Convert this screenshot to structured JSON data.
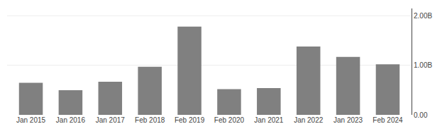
{
  "chart_data": {
    "type": "bar",
    "categories": [
      "Jan 2015",
      "Jan 2016",
      "Jan 2017",
      "Feb 2018",
      "Feb 2019",
      "Feb 2020",
      "Jan 2021",
      "Jan 2022",
      "Jan 2023",
      "Feb 2024"
    ],
    "values": [
      0.648,
      0.499,
      0.67,
      0.972,
      1.782,
      0.519,
      0.541,
      1.382,
      1.172,
      1.02
    ],
    "color": "#808080",
    "ylim": [
      0,
      2.15
    ],
    "yticks": [
      {
        "value": 0,
        "label": "0.00"
      },
      {
        "value": 1.0,
        "label": "1.00B"
      },
      {
        "value": 2.0,
        "label": "2.00B"
      }
    ],
    "grid": true
  }
}
